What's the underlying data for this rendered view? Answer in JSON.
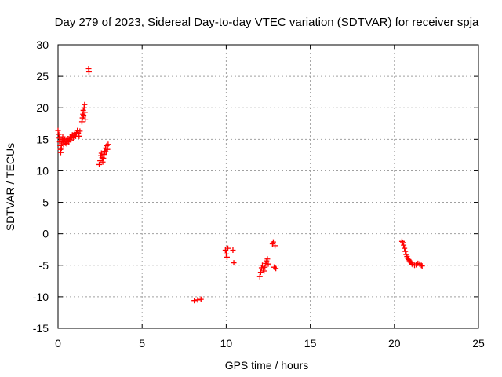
{
  "chart_data": {
    "type": "scatter",
    "title": "Day 279 of 2023, Sidereal Day-to-day VTEC variation (SDTVAR) for receiver spja",
    "xlabel": "GPS time / hours",
    "ylabel": "SDTVAR / TECUs",
    "xlim": [
      0,
      25
    ],
    "ylim": [
      -15,
      30
    ],
    "xticks": [
      0,
      5,
      10,
      15,
      20,
      25
    ],
    "yticks": [
      -15,
      -10,
      -5,
      0,
      5,
      10,
      15,
      20,
      25,
      30
    ],
    "grid": true,
    "marker": "+",
    "series": [
      {
        "name": "SDTVAR",
        "color": "#ff0000",
        "points": [
          [
            0.0,
            16.4
          ],
          [
            0.05,
            15.8
          ],
          [
            0.08,
            15.2
          ],
          [
            0.1,
            14.6
          ],
          [
            0.12,
            14.0
          ],
          [
            0.14,
            13.4
          ],
          [
            0.16,
            12.9
          ],
          [
            0.2,
            13.6
          ],
          [
            0.22,
            14.4
          ],
          [
            0.25,
            15.0
          ],
          [
            0.28,
            15.4
          ],
          [
            0.3,
            14.8
          ],
          [
            0.33,
            14.2
          ],
          [
            0.36,
            14.6
          ],
          [
            0.4,
            15.0
          ],
          [
            0.44,
            14.4
          ],
          [
            0.48,
            14.8
          ],
          [
            0.52,
            14.3
          ],
          [
            0.56,
            14.7
          ],
          [
            0.6,
            15.1
          ],
          [
            0.64,
            14.6
          ],
          [
            0.68,
            15.0
          ],
          [
            0.72,
            15.4
          ],
          [
            0.76,
            14.9
          ],
          [
            0.8,
            15.3
          ],
          [
            0.85,
            15.7
          ],
          [
            0.9,
            15.2
          ],
          [
            0.95,
            15.6
          ],
          [
            1.0,
            16.0
          ],
          [
            1.05,
            15.5
          ],
          [
            1.1,
            16.1
          ],
          [
            1.15,
            16.4
          ],
          [
            1.2,
            16.0
          ],
          [
            1.25,
            15.5
          ],
          [
            1.3,
            16.3
          ],
          [
            1.42,
            17.8
          ],
          [
            1.45,
            18.4
          ],
          [
            1.48,
            19.0
          ],
          [
            1.5,
            19.6
          ],
          [
            1.52,
            18.7
          ],
          [
            1.55,
            20.0
          ],
          [
            1.58,
            20.5
          ],
          [
            1.6,
            19.3
          ],
          [
            1.62,
            18.2
          ],
          [
            1.82,
            26.2
          ],
          [
            1.84,
            25.7
          ],
          [
            2.45,
            11.0
          ],
          [
            2.5,
            11.6
          ],
          [
            2.55,
            12.4
          ],
          [
            2.58,
            12.8
          ],
          [
            2.62,
            12.1
          ],
          [
            2.66,
            11.4
          ],
          [
            2.7,
            12.0
          ],
          [
            2.74,
            12.6
          ],
          [
            2.78,
            13.1
          ],
          [
            2.82,
            13.6
          ],
          [
            2.86,
            13.0
          ],
          [
            2.9,
            14.0
          ],
          [
            2.94,
            13.4
          ],
          [
            2.98,
            14.2
          ],
          [
            8.1,
            -10.6
          ],
          [
            8.3,
            -10.5
          ],
          [
            8.5,
            -10.4
          ],
          [
            9.95,
            -2.6
          ],
          [
            10.0,
            -3.2
          ],
          [
            10.05,
            -3.7
          ],
          [
            10.1,
            -2.3
          ],
          [
            10.4,
            -2.6
          ],
          [
            10.45,
            -4.6
          ],
          [
            12.0,
            -6.8
          ],
          [
            12.05,
            -6.1
          ],
          [
            12.1,
            -5.4
          ],
          [
            12.15,
            -5.0
          ],
          [
            12.2,
            -5.6
          ],
          [
            12.25,
            -5.9
          ],
          [
            12.3,
            -5.3
          ],
          [
            12.35,
            -4.7
          ],
          [
            12.4,
            -4.3
          ],
          [
            12.45,
            -4.0
          ],
          [
            12.5,
            -4.8
          ],
          [
            12.75,
            -1.6
          ],
          [
            12.8,
            -1.3
          ],
          [
            12.85,
            -5.3
          ],
          [
            12.9,
            -1.9
          ],
          [
            12.95,
            -5.5
          ],
          [
            20.45,
            -1.2
          ],
          [
            20.5,
            -1.4
          ],
          [
            20.55,
            -1.8
          ],
          [
            20.6,
            -2.3
          ],
          [
            20.65,
            -2.8
          ],
          [
            20.7,
            -3.3
          ],
          [
            20.75,
            -3.6
          ],
          [
            20.8,
            -3.9
          ],
          [
            20.85,
            -4.1
          ],
          [
            20.9,
            -4.3
          ],
          [
            20.95,
            -4.5
          ],
          [
            21.0,
            -4.6
          ],
          [
            21.05,
            -4.8
          ],
          [
            21.1,
            -4.9
          ],
          [
            21.2,
            -5.0
          ],
          [
            21.3,
            -4.9
          ],
          [
            21.4,
            -4.7
          ],
          [
            21.5,
            -4.8
          ],
          [
            21.6,
            -5.0
          ],
          [
            21.65,
            -5.1
          ]
        ]
      }
    ]
  }
}
